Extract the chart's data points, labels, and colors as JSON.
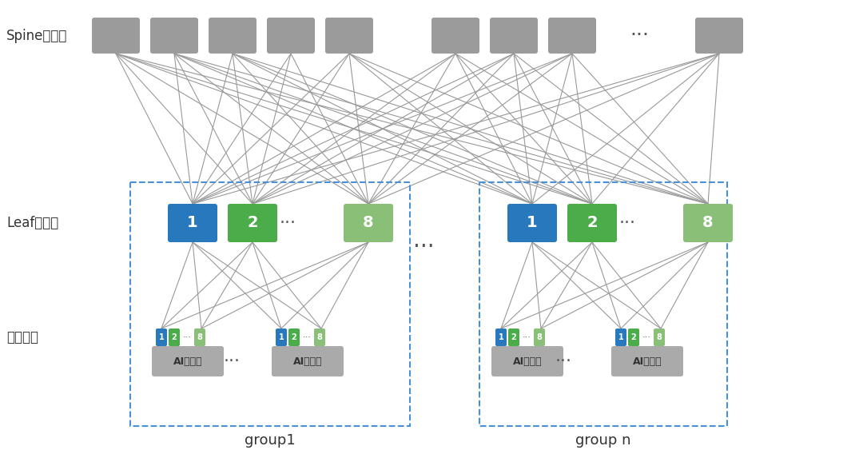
{
  "bg_color": "#ffffff",
  "spine_label": "Spine交换机",
  "leaf_label": "Leaf交换机",
  "port_label": "训练网口",
  "group1_label": "group1",
  "groupn_label": "group n",
  "dots": "···",
  "ai_server_label": "AI服务器",
  "spine_color": "#9b9b9b",
  "leaf_blue": "#2e86c1",
  "leaf_green1": "#5dade2",
  "leaf_green2": "#58d68d",
  "leaf_light_green": "#a9cca4",
  "leaf_green_dark": "#27ae60",
  "server_color": "#aaaaaa",
  "port_blue": "#2e86c1",
  "port_green": "#58d68d",
  "port_light_green": "#a9cca4",
  "line_color": "#999999",
  "dash_color": "#4a90d9",
  "text_color": "#333333"
}
